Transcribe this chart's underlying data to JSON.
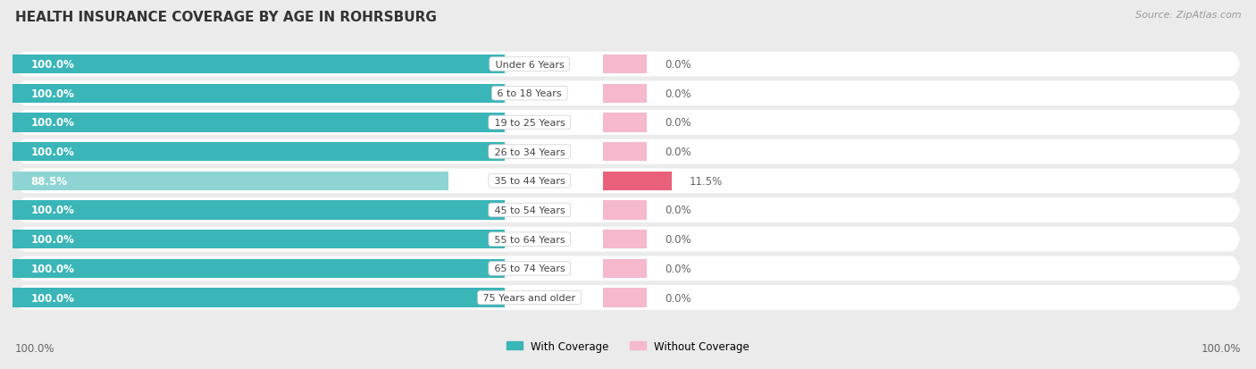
{
  "title": "HEALTH INSURANCE COVERAGE BY AGE IN ROHRSBURG",
  "source": "Source: ZipAtlas.com",
  "categories": [
    "Under 6 Years",
    "6 to 18 Years",
    "19 to 25 Years",
    "26 to 34 Years",
    "35 to 44 Years",
    "45 to 54 Years",
    "55 to 64 Years",
    "65 to 74 Years",
    "75 Years and older"
  ],
  "with_coverage": [
    100.0,
    100.0,
    100.0,
    100.0,
    88.5,
    100.0,
    100.0,
    100.0,
    100.0
  ],
  "without_coverage": [
    0.0,
    0.0,
    0.0,
    0.0,
    11.5,
    0.0,
    0.0,
    0.0,
    0.0
  ],
  "color_with": "#3ab5b8",
  "color_without_large": "#e8607a",
  "color_without_small": "#f5b8cc",
  "color_with_low": "#8fd4d4",
  "color_background": "#ebebeb",
  "color_row_bg": "#ffffff",
  "color_row_bg_low": "#f5f5f5",
  "bar_height": 0.65,
  "title_fontsize": 11,
  "label_fontsize": 8.5,
  "tick_fontsize": 8.5,
  "source_fontsize": 8,
  "max_val": 100.0,
  "label_pivot_pct": 37.5
}
